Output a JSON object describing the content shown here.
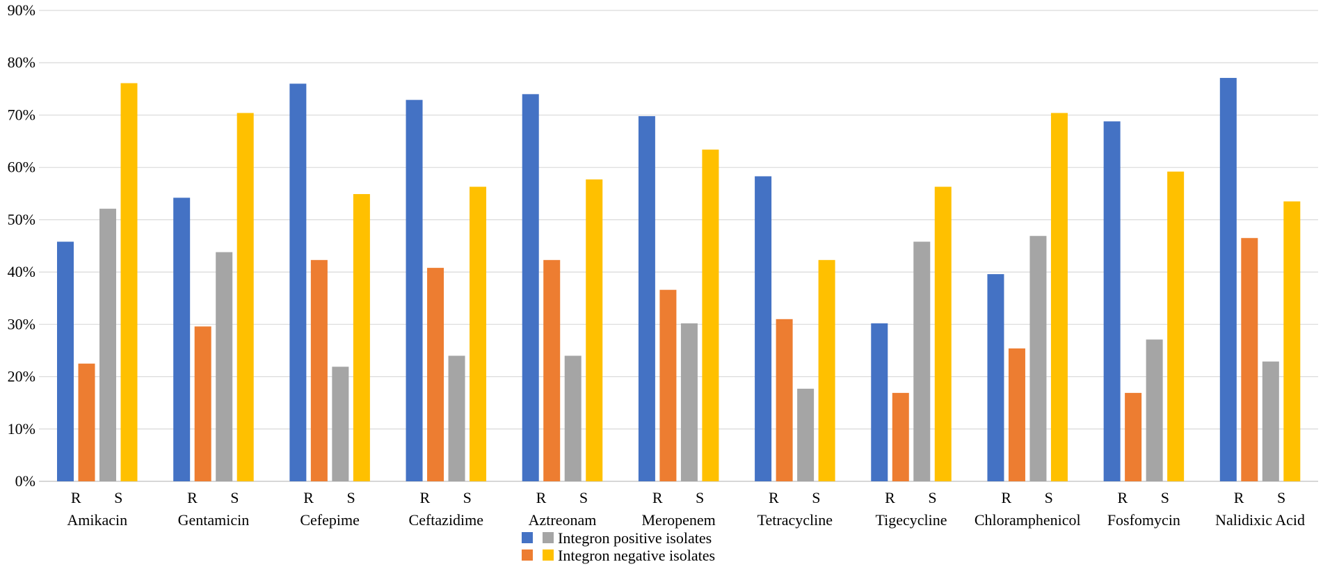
{
  "chart_data": {
    "type": "bar",
    "title": "",
    "xlabel": "",
    "ylabel": "",
    "ylim": [
      0,
      90
    ],
    "y_ticks": [
      "0%",
      "10%",
      "20%",
      "30%",
      "40%",
      "50%",
      "60%",
      "70%",
      "80%",
      "90%"
    ],
    "y_tick_values": [
      0,
      10,
      20,
      30,
      40,
      50,
      60,
      70,
      80,
      90
    ],
    "grid": true,
    "categories": [
      "Amikacin",
      "Gentamicin",
      "Cefepime",
      "Ceftazidime",
      "Aztreonam",
      "Meropenem",
      "Tetracycline",
      "Tigecycline",
      "Chloramphenicol",
      "Fosfomycin",
      "Nalidixic Acid"
    ],
    "sub_labels": [
      "R",
      "S"
    ],
    "series": [
      {
        "name": "Integron positive isolates (R)",
        "color": "#4472C4",
        "values": [
          45.8,
          54.2,
          76.0,
          72.9,
          74.0,
          69.8,
          58.3,
          30.2,
          39.6,
          68.8,
          77.1
        ]
      },
      {
        "name": "Integron negative isolates (R)",
        "color": "#ED7D31",
        "values": [
          22.5,
          29.6,
          42.3,
          40.8,
          42.3,
          36.6,
          31.0,
          16.9,
          25.4,
          16.9,
          46.5
        ]
      },
      {
        "name": "Integron positive isolates (S)",
        "color": "#A5A5A5",
        "values": [
          52.1,
          43.8,
          21.9,
          24.0,
          24.0,
          30.2,
          17.7,
          45.8,
          46.9,
          27.1,
          22.9
        ]
      },
      {
        "name": "Integron negative isolates (S)",
        "color": "#FFC000",
        "values": [
          76.1,
          70.4,
          54.9,
          56.3,
          57.7,
          63.4,
          42.3,
          56.3,
          70.4,
          59.2,
          53.5
        ]
      }
    ],
    "legend": {
      "position": "bottom",
      "entries": [
        {
          "label": "Integron positive isolates",
          "colors": [
            "#4472C4",
            "#A5A5A5"
          ]
        },
        {
          "label": "Integron negative isolates",
          "colors": [
            "#ED7D31",
            "#FFC000"
          ]
        }
      ]
    }
  }
}
